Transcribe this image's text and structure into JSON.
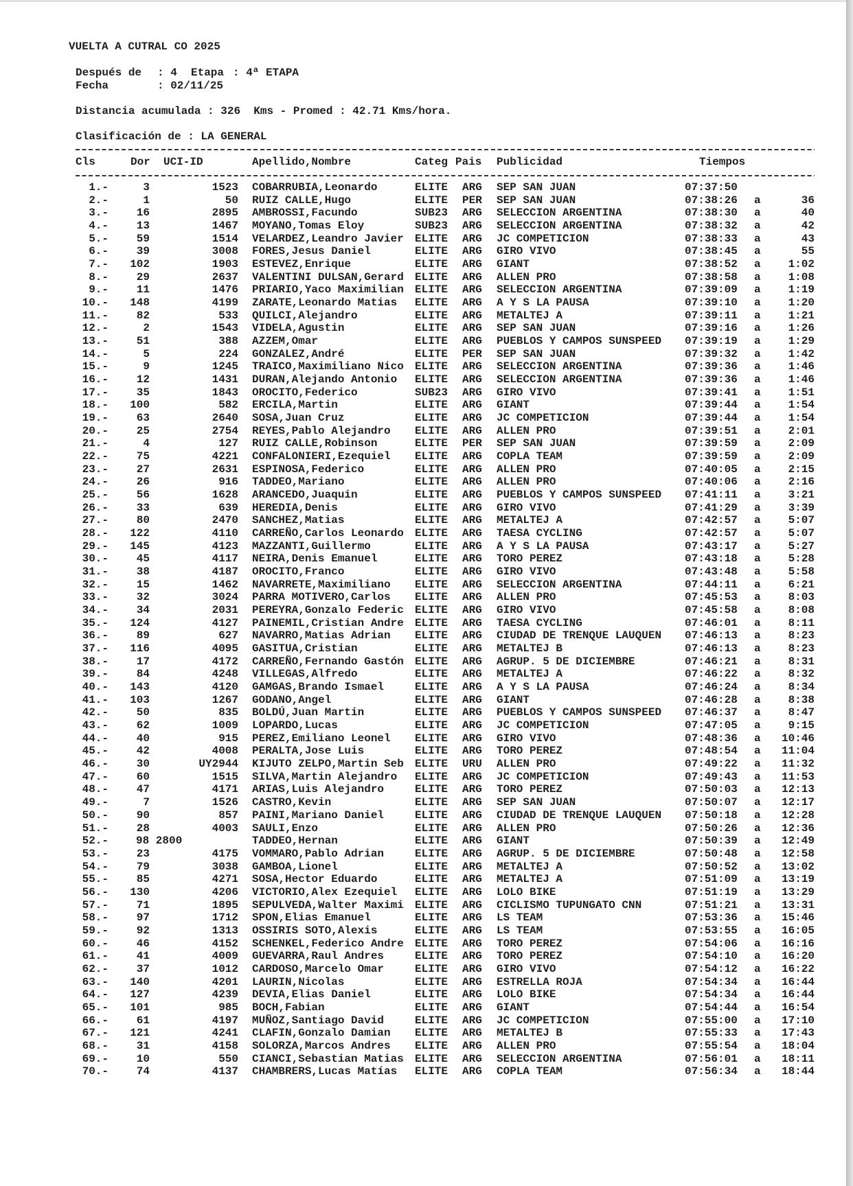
{
  "header": {
    "title": "VUELTA A CUTRAL CO 2025",
    "despues_label": "Después de",
    "despues_value": ": 4",
    "etapa_label": "Etapa",
    "etapa_value": ": 4ª ETAPA",
    "fecha_label": "Fecha",
    "fecha_value": ": 02/11/25",
    "distancia": "Distancia acumulada : 326  Kms - Promed : 42.71 Kms/hora.",
    "clasificacion": "Clasificación de : LA GENERAL"
  },
  "table": {
    "columns": [
      "Cls",
      "Dor",
      "UCI-ID",
      "Apellido,Nombre",
      "Categ",
      "Pais",
      "Publicidad",
      "Tiempos"
    ],
    "rows": [
      [
        "1.-",
        "3",
        "1523",
        "COBARRUBIA,Leonardo",
        "ELITE",
        "ARG",
        "SEP SAN JUAN",
        "07:37:50",
        "",
        ""
      ],
      [
        "2.-",
        "1",
        "50",
        "RUIZ CALLE,Hugo",
        "ELITE",
        "PER",
        "SEP SAN JUAN",
        "07:38:26",
        "a",
        "36"
      ],
      [
        "3.-",
        "16",
        "2895",
        "AMBROSSI,Facundo",
        "SUB23",
        "ARG",
        "SELECCION ARGENTINA",
        "07:38:30",
        "a",
        "40"
      ],
      [
        "4.-",
        "13",
        "1467",
        "MOYANO,Tomas Eloy",
        "SUB23",
        "ARG",
        "SELECCION ARGENTINA",
        "07:38:32",
        "a",
        "42"
      ],
      [
        "5.-",
        "59",
        "1514",
        "VELARDEZ,Leandro Javier",
        "ELITE",
        "ARG",
        "JC COMPETICION",
        "07:38:33",
        "a",
        "43"
      ],
      [
        "6.-",
        "39",
        "3008",
        "FORES,Jesus Daniel",
        "ELITE",
        "ARG",
        "GIRO VIVO",
        "07:38:45",
        "a",
        "55"
      ],
      [
        "7.-",
        "102",
        "1903",
        "ESTEVEZ,Enrique",
        "ELITE",
        "ARG",
        "GIANT",
        "07:38:52",
        "a",
        "1:02"
      ],
      [
        "8.-",
        "29",
        "2637",
        "VALENTINI DULSAN,Gerard",
        "ELITE",
        "ARG",
        "ALLEN PRO",
        "07:38:58",
        "a",
        "1:08"
      ],
      [
        "9.-",
        "11",
        "1476",
        "PRIARIO,Yaco Maximilian",
        "ELITE",
        "ARG",
        "SELECCION ARGENTINA",
        "07:39:09",
        "a",
        "1:19"
      ],
      [
        "10.-",
        "148",
        "4199",
        "ZARATE,Leonardo Matias",
        "ELITE",
        "ARG",
        "A Y S LA PAUSA",
        "07:39:10",
        "a",
        "1:20"
      ],
      [
        "11.-",
        "82",
        "533",
        "QUILCI,Alejandro",
        "ELITE",
        "ARG",
        "METALTEJ A",
        "07:39:11",
        "a",
        "1:21"
      ],
      [
        "12.-",
        "2",
        "1543",
        "VIDELA,Agustin",
        "ELITE",
        "ARG",
        "SEP SAN JUAN",
        "07:39:16",
        "a",
        "1:26"
      ],
      [
        "13.-",
        "51",
        "388",
        "AZZEM,Omar",
        "ELITE",
        "ARG",
        "PUEBLOS Y CAMPOS SUNSPEED",
        "07:39:19",
        "a",
        "1:29"
      ],
      [
        "14.-",
        "5",
        "224",
        "GONZALEZ,André",
        "ELITE",
        "PER",
        "SEP SAN JUAN",
        "07:39:32",
        "a",
        "1:42"
      ],
      [
        "15.-",
        "9",
        "1245",
        "TRAICO,Maximiliano Nico",
        "ELITE",
        "ARG",
        "SELECCION ARGENTINA",
        "07:39:36",
        "a",
        "1:46"
      ],
      [
        "16.-",
        "12",
        "1431",
        "DURAN,Alejando Antonio",
        "ELITE",
        "ARG",
        "SELECCION ARGENTINA",
        "07:39:36",
        "a",
        "1:46"
      ],
      [
        "17.-",
        "35",
        "1843",
        "OROCITO,Federico",
        "SUB23",
        "ARG",
        "GIRO VIVO",
        "07:39:41",
        "a",
        "1:51"
      ],
      [
        "18.-",
        "100",
        "582",
        "ERCILA,Martin",
        "ELITE",
        "ARG",
        "GIANT",
        "07:39:44",
        "a",
        "1:54"
      ],
      [
        "19.-",
        "63",
        "2640",
        "SOSA,Juan Cruz",
        "ELITE",
        "ARG",
        "JC COMPETICION",
        "07:39:44",
        "a",
        "1:54"
      ],
      [
        "20.-",
        "25",
        "2754",
        "REYES,Pablo Alejandro",
        "ELITE",
        "ARG",
        "ALLEN PRO",
        "07:39:51",
        "a",
        "2:01"
      ],
      [
        "21.-",
        "4",
        "127",
        "RUIZ CALLE,Robinson",
        "ELITE",
        "PER",
        "SEP SAN JUAN",
        "07:39:59",
        "a",
        "2:09"
      ],
      [
        "22.-",
        "75",
        "4221",
        "CONFALONIERI,Ezequiel",
        "ELITE",
        "ARG",
        "COPLA TEAM",
        "07:39:59",
        "a",
        "2:09"
      ],
      [
        "23.-",
        "27",
        "2631",
        "ESPINOSA,Federico",
        "ELITE",
        "ARG",
        "ALLEN PRO",
        "07:40:05",
        "a",
        "2:15"
      ],
      [
        "24.-",
        "26",
        "916",
        "TADDEO,Mariano",
        "ELITE",
        "ARG",
        "ALLEN PRO",
        "07:40:06",
        "a",
        "2:16"
      ],
      [
        "25.-",
        "56",
        "1628",
        "ARANCEDO,Juaquin",
        "ELITE",
        "ARG",
        "PUEBLOS Y CAMPOS SUNSPEED",
        "07:41:11",
        "a",
        "3:21"
      ],
      [
        "26.-",
        "33",
        "639",
        "HEREDIA,Denis",
        "ELITE",
        "ARG",
        "GIRO VIVO",
        "07:41:29",
        "a",
        "3:39"
      ],
      [
        "27.-",
        "80",
        "2470",
        "SANCHEZ,Matias",
        "ELITE",
        "ARG",
        "METALTEJ A",
        "07:42:57",
        "a",
        "5:07"
      ],
      [
        "28.-",
        "122",
        "4110",
        "CARREÑO,Carlos Leonardo",
        "ELITE",
        "ARG",
        "TAESA CYCLING",
        "07:42:57",
        "a",
        "5:07"
      ],
      [
        "29.-",
        "145",
        "4123",
        "MAZZANTI,Guillermo",
        "ELITE",
        "ARG",
        "A Y S LA PAUSA",
        "07:43:17",
        "a",
        "5:27"
      ],
      [
        "30.-",
        "45",
        "4117",
        "NEIRA,Denis Emanuel",
        "ELITE",
        "ARG",
        "TORO PEREZ",
        "07:43:18",
        "a",
        "5:28"
      ],
      [
        "31.-",
        "38",
        "4187",
        "OROCITO,Franco",
        "ELITE",
        "ARG",
        "GIRO VIVO",
        "07:43:48",
        "a",
        "5:58"
      ],
      [
        "32.-",
        "15",
        "1462",
        "NAVARRETE,Maximiliano",
        "ELITE",
        "ARG",
        "SELECCION ARGENTINA",
        "07:44:11",
        "a",
        "6:21"
      ],
      [
        "33.-",
        "32",
        "3024",
        "PARRA MOTIVERO,Carlos",
        "ELITE",
        "ARG",
        "ALLEN PRO",
        "07:45:53",
        "a",
        "8:03"
      ],
      [
        "34.-",
        "34",
        "2031",
        "PEREYRA,Gonzalo Federic",
        "ELITE",
        "ARG",
        "GIRO VIVO",
        "07:45:58",
        "a",
        "8:08"
      ],
      [
        "35.-",
        "124",
        "4127",
        "PAINEMIL,Cristian Andre",
        "ELITE",
        "ARG",
        "TAESA CYCLING",
        "07:46:01",
        "a",
        "8:11"
      ],
      [
        "36.-",
        "89",
        "627",
        "NAVARRO,Matias Adrian",
        "ELITE",
        "ARG",
        "CIUDAD DE TRENQUE LAUQUEN",
        "07:46:13",
        "a",
        "8:23"
      ],
      [
        "37.-",
        "116",
        "4095",
        "GASITUA,Cristian",
        "ELITE",
        "ARG",
        "METALTEJ B",
        "07:46:13",
        "a",
        "8:23"
      ],
      [
        "38.-",
        "17",
        "4172",
        "CARREÑO,Fernando Gastón",
        "ELITE",
        "ARG",
        "AGRUP. 5 DE DICIEMBRE",
        "07:46:21",
        "a",
        "8:31"
      ],
      [
        "39.-",
        "84",
        "4248",
        "VILLEGAS,Alfredo",
        "ELITE",
        "ARG",
        "METALTEJ A",
        "07:46:22",
        "a",
        "8:32"
      ],
      [
        "40.-",
        "143",
        "4120",
        "GAMGAS,Brando Ismael",
        "ELITE",
        "ARG",
        "A Y S LA PAUSA",
        "07:46:24",
        "a",
        "8:34"
      ],
      [
        "41.-",
        "103",
        "1267",
        "GODANO,Angel",
        "ELITE",
        "ARG",
        "GIANT",
        "07:46:28",
        "a",
        "8:38"
      ],
      [
        "42.-",
        "50",
        "835",
        "BOLDÚ,Juan Martin",
        "ELITE",
        "ARG",
        "PUEBLOS Y CAMPOS SUNSPEED",
        "07:46:37",
        "a",
        "8:47"
      ],
      [
        "43.-",
        "62",
        "1009",
        "LOPARDO,Lucas",
        "ELITE",
        "ARG",
        "JC COMPETICION",
        "07:47:05",
        "a",
        "9:15"
      ],
      [
        "44.-",
        "40",
        "915",
        "PEREZ,Emiliano Leonel",
        "ELITE",
        "ARG",
        "GIRO VIVO",
        "07:48:36",
        "a",
        "10:46"
      ],
      [
        "45.-",
        "42",
        "4008",
        "PERALTA,Jose Luis",
        "ELITE",
        "ARG",
        "TORO PEREZ",
        "07:48:54",
        "a",
        "11:04"
      ],
      [
        "46.-",
        "30",
        "UY2944",
        "KIJUTO ZELPO,Martin Seb",
        "ELITE",
        "URU",
        "ALLEN PRO",
        "07:49:22",
        "a",
        "11:32"
      ],
      [
        "47.-",
        "60",
        "1515",
        "SILVA,Martin Alejandro",
        "ELITE",
        "ARG",
        "JC COMPETICION",
        "07:49:43",
        "a",
        "11:53"
      ],
      [
        "48.-",
        "47",
        "4171",
        "ARIAS,Luis Alejandro",
        "ELITE",
        "ARG",
        "TORO PEREZ",
        "07:50:03",
        "a",
        "12:13"
      ],
      [
        "49.-",
        "7",
        "1526",
        "CASTRO,Kevin",
        "ELITE",
        "ARG",
        "SEP SAN JUAN",
        "07:50:07",
        "a",
        "12:17"
      ],
      [
        "50.-",
        "90",
        "857",
        "PAINI,Mariano Daniel",
        "ELITE",
        "ARG",
        "CIUDAD DE TRENQUE LAUQUEN",
        "07:50:18",
        "a",
        "12:28"
      ],
      [
        "51.-",
        "28",
        "4003",
        "SAULI,Enzo",
        "ELITE",
        "ARG",
        "ALLEN PRO",
        "07:50:26",
        "a",
        "12:36"
      ],
      [
        "52.-",
        "98 2800",
        "",
        "TADDEO,Hernan",
        "ELITE",
        "ARG",
        "GIANT",
        "07:50:39",
        "a",
        "12:49"
      ],
      [
        "53.-",
        "23",
        "4175",
        "VOMMARO,Pablo Adrian",
        "ELITE",
        "ARG",
        "AGRUP. 5 DE DICIEMBRE",
        "07:50:48",
        "a",
        "12:58"
      ],
      [
        "54.-",
        "79",
        "3038",
        "GAMBOA,Lionel",
        "ELITE",
        "ARG",
        "METALTEJ A",
        "07:50:52",
        "a",
        "13:02"
      ],
      [
        "55.-",
        "85",
        "4271",
        "SOSA,Hector Eduardo",
        "ELITE",
        "ARG",
        "METALTEJ A",
        "07:51:09",
        "a",
        "13:19"
      ],
      [
        "56.-",
        "130",
        "4206",
        "VICTORIO,Alex Ezequiel",
        "ELITE",
        "ARG",
        "LOLO BIKE",
        "07:51:19",
        "a",
        "13:29"
      ],
      [
        "57.-",
        "71",
        "1895",
        "SEPULVEDA,Walter Maximi",
        "ELITE",
        "ARG",
        "CICLISMO TUPUNGATO CNN",
        "07:51:21",
        "a",
        "13:31"
      ],
      [
        "58.-",
        "97",
        "1712",
        "SPON,Elias Emanuel",
        "ELITE",
        "ARG",
        "LS TEAM",
        "07:53:36",
        "a",
        "15:46"
      ],
      [
        "59.-",
        "92",
        "1313",
        "OSSIRIS SOTO,Alexis",
        "ELITE",
        "ARG",
        "LS TEAM",
        "07:53:55",
        "a",
        "16:05"
      ],
      [
        "60.-",
        "46",
        "4152",
        "SCHENKEL,Federico Andre",
        "ELITE",
        "ARG",
        "TORO PEREZ",
        "07:54:06",
        "a",
        "16:16"
      ],
      [
        "61.-",
        "41",
        "4009",
        "GUEVARRA,Raul Andres",
        "ELITE",
        "ARG",
        "TORO PEREZ",
        "07:54:10",
        "a",
        "16:20"
      ],
      [
        "62.-",
        "37",
        "1012",
        "CARDOSO,Marcelo Omar",
        "ELITE",
        "ARG",
        "GIRO VIVO",
        "07:54:12",
        "a",
        "16:22"
      ],
      [
        "63.-",
        "140",
        "4201",
        "LAURIN,Nicolas",
        "ELITE",
        "ARG",
        "ESTRELLA ROJA",
        "07:54:34",
        "a",
        "16:44"
      ],
      [
        "64.-",
        "127",
        "4239",
        "DEVIA,Elias Daniel",
        "ELITE",
        "ARG",
        "LOLO BIKE",
        "07:54:34",
        "a",
        "16:44"
      ],
      [
        "65.-",
        "101",
        "985",
        "BOCH,Fabian",
        "ELITE",
        "ARG",
        "GIANT",
        "07:54:44",
        "a",
        "16:54"
      ],
      [
        "66.-",
        "61",
        "4197",
        "MUÑOZ,Santiago David",
        "ELITE",
        "ARG",
        "JC COMPETICION",
        "07:55:00",
        "a",
        "17:10"
      ],
      [
        "67.-",
        "121",
        "4241",
        "CLAFIN,Gonzalo Damian",
        "ELITE",
        "ARG",
        "METALTEJ B",
        "07:55:33",
        "a",
        "17:43"
      ],
      [
        "68.-",
        "31",
        "4158",
        "SOLORZA,Marcos Andres",
        "ELITE",
        "ARG",
        "ALLEN PRO",
        "07:55:54",
        "a",
        "18:04"
      ],
      [
        "69.-",
        "10",
        "550",
        "CIANCI,Sebastian Matias",
        "ELITE",
        "ARG",
        "SELECCION ARGENTINA",
        "07:56:01",
        "a",
        "18:11"
      ],
      [
        "70.-",
        "74",
        "4137",
        "CHAMBRERS,Lucas Matías",
        "ELITE",
        "ARG",
        "COPLA TEAM",
        "07:56:34",
        "a",
        "18:44"
      ]
    ]
  }
}
